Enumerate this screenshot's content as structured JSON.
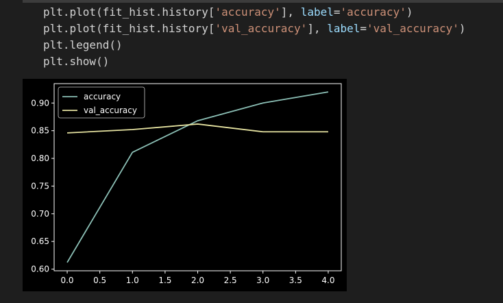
{
  "code": {
    "lines": [
      [
        {
          "t": "plt.plot(fit_hist.history[",
          "c": "op"
        },
        {
          "t": "'accuracy'",
          "c": "str"
        },
        {
          "t": "], ",
          "c": "op"
        },
        {
          "t": "label",
          "c": "kw"
        },
        {
          "t": "=",
          "c": "op"
        },
        {
          "t": "'accuracy'",
          "c": "str"
        },
        {
          "t": ")",
          "c": "op"
        }
      ],
      [
        {
          "t": "plt.plot(fit_hist.history[",
          "c": "op"
        },
        {
          "t": "'val_accuracy'",
          "c": "str"
        },
        {
          "t": "], ",
          "c": "op"
        },
        {
          "t": "label",
          "c": "kw"
        },
        {
          "t": "=",
          "c": "op"
        },
        {
          "t": "'val_accuracy'",
          "c": "str"
        },
        {
          "t": ")",
          "c": "op"
        }
      ],
      [
        {
          "t": "plt.legend()",
          "c": "op"
        }
      ],
      [
        {
          "t": "plt.show()",
          "c": "op"
        }
      ]
    ]
  },
  "colors": {
    "background": "#1e1e1e",
    "plot_background": "#000000",
    "axis": "#ffffff",
    "accuracy": "#8cc0b6",
    "val_accuracy": "#e6e3a1"
  },
  "chart_data": {
    "type": "line",
    "x": [
      0.0,
      1.0,
      2.0,
      3.0,
      4.0
    ],
    "series": [
      {
        "name": "accuracy",
        "values": [
          0.612,
          0.811,
          0.868,
          0.9,
          0.92
        ]
      },
      {
        "name": "val_accuracy",
        "values": [
          0.846,
          0.852,
          0.862,
          0.848,
          0.848
        ]
      }
    ],
    "xticks": [
      "0.0",
      "0.5",
      "1.0",
      "1.5",
      "2.0",
      "2.5",
      "3.0",
      "3.5",
      "4.0"
    ],
    "xtick_values": [
      0.0,
      0.5,
      1.0,
      1.5,
      2.0,
      2.5,
      3.0,
      3.5,
      4.0
    ],
    "yticks": [
      "0.60",
      "0.65",
      "0.70",
      "0.75",
      "0.80",
      "0.85",
      "0.90"
    ],
    "ytick_values": [
      0.6,
      0.65,
      0.7,
      0.75,
      0.8,
      0.85,
      0.9
    ],
    "xlim": [
      -0.2,
      4.2
    ],
    "ylim": [
      0.597,
      0.935
    ],
    "grid": false,
    "legend": "top-left",
    "title": "",
    "xlabel": "",
    "ylabel": ""
  }
}
